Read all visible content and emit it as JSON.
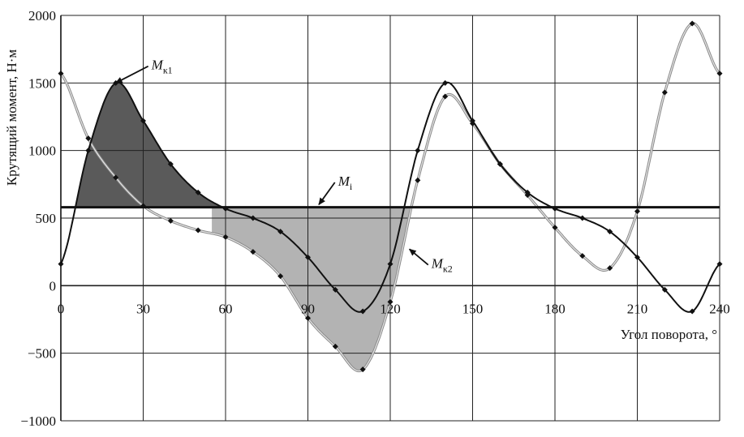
{
  "chart_data": {
    "type": "line",
    "title": "",
    "xlabel": "Угол поворота, °",
    "ylabel": "Крутящий момент, Н·м",
    "xlim": [
      0,
      240
    ],
    "ylim": [
      -1000,
      2000
    ],
    "xticks": [
      0,
      30,
      60,
      90,
      120,
      150,
      180,
      210,
      240
    ],
    "yticks": [
      -1000,
      -500,
      0,
      500,
      1000,
      1500,
      2000
    ],
    "xtick_labels": [
      "0",
      "30",
      "60",
      "90",
      "120",
      "150",
      "180",
      "210",
      "240"
    ],
    "ytick_labels": [
      "−1000",
      "−500",
      "0",
      "500",
      "1000",
      "1500",
      "2000"
    ],
    "grid": true,
    "colors": {
      "series_k1": "#111111",
      "series_k2": "#777777",
      "mean_line": "#111111",
      "fill_dark": "#5a5a5a",
      "fill_light": "#b3b3b3"
    },
    "annotations": [
      {
        "text": "M",
        "sub": "к1",
        "x": 33,
        "y": 1600,
        "arrow_to": [
          20,
          1500
        ]
      },
      {
        "text": "M",
        "sub": "i",
        "x": 101,
        "y": 740,
        "arrow_to": [
          94,
          600
        ]
      },
      {
        "text": "M",
        "sub": "к2",
        "x": 135,
        "y": 130,
        "arrow_to": [
          127,
          270
        ]
      }
    ],
    "series": [
      {
        "name": "M к1",
        "x": [
          0,
          10,
          20,
          30,
          40,
          50,
          60,
          70,
          80,
          90,
          100,
          110,
          120,
          130,
          140,
          150,
          160,
          170,
          180,
          190,
          200,
          210,
          220,
          230,
          240
        ],
        "y": [
          160,
          1000,
          1500,
          1220,
          900,
          690,
          570,
          500,
          400,
          210,
          -30,
          -190,
          160,
          1000,
          1500,
          1220,
          900,
          690,
          570,
          500,
          400,
          210,
          -30,
          -190,
          160
        ]
      },
      {
        "name": "M к2",
        "x": [
          0,
          10,
          20,
          30,
          40,
          50,
          60,
          70,
          80,
          90,
          100,
          110,
          120,
          130,
          140,
          150,
          160,
          170,
          180,
          190,
          200,
          210,
          220,
          230,
          240
        ],
        "y": [
          1570,
          1090,
          800,
          590,
          480,
          410,
          360,
          250,
          70,
          -240,
          -450,
          -620,
          -120,
          780,
          1400,
          1200,
          900,
          670,
          430,
          220,
          130,
          550,
          1430,
          1940,
          1570
        ]
      },
      {
        "name": "M i",
        "x": [
          0,
          240
        ],
        "y": [
          580,
          580
        ]
      }
    ]
  }
}
